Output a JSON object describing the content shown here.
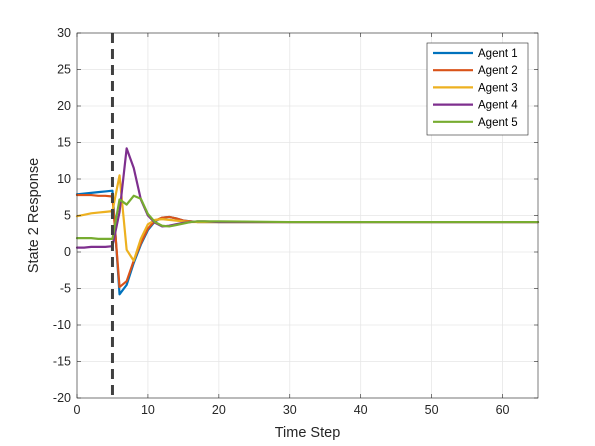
{
  "chart_data": {
    "type": "line",
    "title": "",
    "xlabel": "Time Step",
    "ylabel": "State 2 Response",
    "xlim": [
      0,
      65
    ],
    "ylim": [
      -20,
      30
    ],
    "xticks": [
      0,
      10,
      20,
      30,
      40,
      50,
      60
    ],
    "yticks": [
      -20,
      -15,
      -10,
      -5,
      0,
      5,
      10,
      15,
      20,
      25,
      30
    ],
    "grid": true,
    "legend_position": "top-right",
    "vline": {
      "x": 5,
      "style": "dashed",
      "color": "#404040"
    },
    "series": [
      {
        "name": "Agent 1",
        "color": "#0072BD",
        "points": [
          [
            0,
            7.9
          ],
          [
            1,
            8.0
          ],
          [
            2,
            8.1
          ],
          [
            3,
            8.2
          ],
          [
            4,
            8.3
          ],
          [
            5,
            8.4
          ],
          [
            6,
            -5.8
          ],
          [
            7,
            -4.5
          ],
          [
            8,
            -1.5
          ],
          [
            9,
            1.0
          ],
          [
            10,
            3.0
          ],
          [
            11,
            4.2
          ],
          [
            12,
            4.7
          ],
          [
            13,
            4.8
          ],
          [
            14,
            4.6
          ],
          [
            15,
            4.3
          ],
          [
            16,
            4.2
          ],
          [
            17,
            4.1
          ],
          [
            18,
            4.1
          ],
          [
            20,
            4.1
          ],
          [
            30,
            4.1
          ],
          [
            40,
            4.1
          ],
          [
            50,
            4.1
          ],
          [
            65,
            4.1
          ]
        ]
      },
      {
        "name": "Agent 2",
        "color": "#D95319",
        "points": [
          [
            0,
            7.8
          ],
          [
            1,
            7.8
          ],
          [
            2,
            7.8
          ],
          [
            3,
            7.7
          ],
          [
            4,
            7.7
          ],
          [
            5,
            7.6
          ],
          [
            6,
            -4.8
          ],
          [
            7,
            -4.0
          ],
          [
            8,
            -1.2
          ],
          [
            9,
            1.2
          ],
          [
            10,
            3.2
          ],
          [
            11,
            4.3
          ],
          [
            12,
            4.7
          ],
          [
            13,
            4.8
          ],
          [
            14,
            4.6
          ],
          [
            15,
            4.3
          ],
          [
            16,
            4.2
          ],
          [
            17,
            4.1
          ],
          [
            20,
            4.1
          ],
          [
            30,
            4.1
          ],
          [
            40,
            4.1
          ],
          [
            50,
            4.1
          ],
          [
            65,
            4.1
          ]
        ]
      },
      {
        "name": "Agent 3",
        "color": "#EDB120",
        "points": [
          [
            0,
            4.9
          ],
          [
            1,
            5.1
          ],
          [
            2,
            5.3
          ],
          [
            3,
            5.4
          ],
          [
            4,
            5.5
          ],
          [
            5,
            5.6
          ],
          [
            6,
            10.5
          ],
          [
            7,
            0.3
          ],
          [
            8,
            -1.2
          ],
          [
            9,
            1.8
          ],
          [
            10,
            3.8
          ],
          [
            11,
            4.4
          ],
          [
            12,
            4.5
          ],
          [
            13,
            4.4
          ],
          [
            14,
            4.3
          ],
          [
            15,
            4.2
          ],
          [
            16,
            4.1
          ],
          [
            20,
            4.1
          ],
          [
            30,
            4.1
          ],
          [
            40,
            4.1
          ],
          [
            50,
            4.1
          ],
          [
            65,
            4.1
          ]
        ]
      },
      {
        "name": "Agent 4",
        "color": "#7E2F8E",
        "points": [
          [
            0,
            0.6
          ],
          [
            1,
            0.6
          ],
          [
            2,
            0.7
          ],
          [
            3,
            0.7
          ],
          [
            4,
            0.7
          ],
          [
            5,
            0.8
          ],
          [
            6,
            5.5
          ],
          [
            7,
            14.2
          ],
          [
            8,
            11.5
          ],
          [
            9,
            7.2
          ],
          [
            10,
            5.0
          ],
          [
            11,
            4.0
          ],
          [
            12,
            3.5
          ],
          [
            13,
            3.6
          ],
          [
            14,
            3.8
          ],
          [
            15,
            4.0
          ],
          [
            16,
            4.1
          ],
          [
            17,
            4.2
          ],
          [
            18,
            4.2
          ],
          [
            20,
            4.1
          ],
          [
            30,
            4.1
          ],
          [
            40,
            4.1
          ],
          [
            50,
            4.1
          ],
          [
            65,
            4.1
          ]
        ]
      },
      {
        "name": "Agent 5",
        "color": "#77AC30",
        "points": [
          [
            0,
            1.9
          ],
          [
            1,
            1.9
          ],
          [
            2,
            1.9
          ],
          [
            3,
            1.8
          ],
          [
            4,
            1.8
          ],
          [
            5,
            1.8
          ],
          [
            6,
            7.2
          ],
          [
            7,
            6.5
          ],
          [
            8,
            7.7
          ],
          [
            9,
            7.3
          ],
          [
            10,
            5.2
          ],
          [
            11,
            4.1
          ],
          [
            12,
            3.6
          ],
          [
            13,
            3.5
          ],
          [
            14,
            3.7
          ],
          [
            15,
            3.9
          ],
          [
            16,
            4.1
          ],
          [
            17,
            4.2
          ],
          [
            18,
            4.2
          ],
          [
            20,
            4.2
          ],
          [
            30,
            4.1
          ],
          [
            40,
            4.1
          ],
          [
            50,
            4.1
          ],
          [
            65,
            4.1
          ]
        ]
      }
    ]
  }
}
